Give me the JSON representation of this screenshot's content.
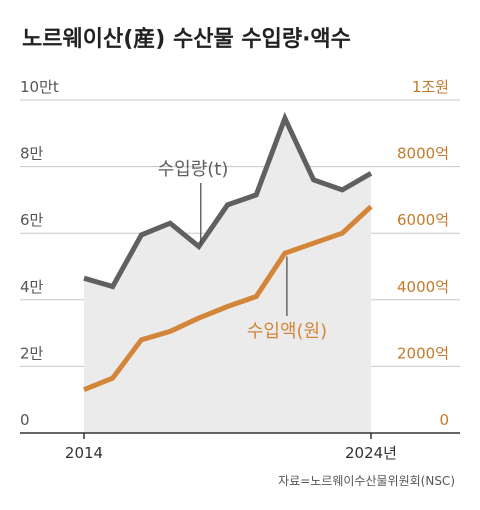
{
  "title": "노르웨이산(産) 수산물 수입량·액수",
  "source": "자료=노르웨이수산물위원회(NSC)",
  "colors": {
    "volume": "#606060",
    "value": "#d3863a",
    "fill": "#ebebeb",
    "axis": "#333333",
    "right_axis_text": "#c47a2c"
  },
  "chart_data": {
    "type": "line",
    "title": "노르웨이산(産) 수산물 수입량·액수",
    "x_start": 2014,
    "x_end": 2024,
    "x_tick_labels": [
      "2014",
      "2024년"
    ],
    "left_axis": {
      "unit": "t",
      "range": [
        0,
        100000
      ],
      "ticks": [
        {
          "value": 0,
          "label": "0"
        },
        {
          "value": 20000,
          "label": "2만"
        },
        {
          "value": 40000,
          "label": "4만"
        },
        {
          "value": 60000,
          "label": "6만"
        },
        {
          "value": 80000,
          "label": "8만"
        },
        {
          "value": 100000,
          "label": "10만t"
        }
      ]
    },
    "right_axis": {
      "unit": "원",
      "range": [
        0,
        10000
      ],
      "ticks": [
        {
          "value": 0,
          "label": "0"
        },
        {
          "value": 2000,
          "label": "2000억"
        },
        {
          "value": 4000,
          "label": "4000억"
        },
        {
          "value": 6000,
          "label": "6000억"
        },
        {
          "value": 8000,
          "label": "8000억"
        },
        {
          "value": 10000,
          "label": "1조원"
        }
      ]
    },
    "series": [
      {
        "name": "수입량(t)",
        "axis": "left",
        "x": [
          2014,
          2015,
          2016,
          2017,
          2018,
          2019,
          2020,
          2021,
          2022,
          2023,
          2024
        ],
        "values": [
          46500,
          44000,
          59500,
          63000,
          56000,
          68500,
          71500,
          94500,
          76000,
          73000,
          78000
        ]
      },
      {
        "name": "수입액(원)",
        "axis": "right",
        "x": [
          2014,
          2015,
          2016,
          2017,
          2018,
          2019,
          2020,
          2021,
          2022,
          2023,
          2024
        ],
        "values": [
          1300,
          1650,
          2800,
          3050,
          3450,
          3800,
          4100,
          5400,
          5700,
          6000,
          6800
        ]
      }
    ]
  }
}
